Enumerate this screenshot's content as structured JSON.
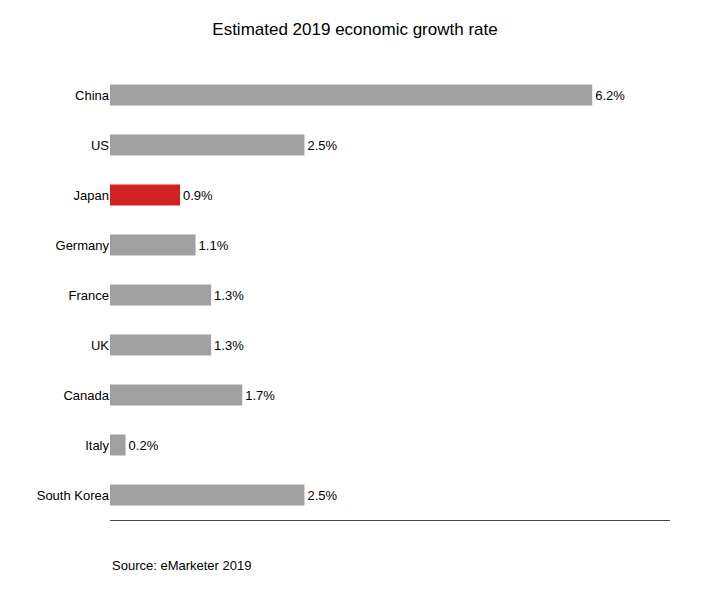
{
  "chart_data": {
    "type": "bar",
    "orientation": "horizontal",
    "title": "Estimated 2019 economic growth rate",
    "categories": [
      "China",
      "US",
      "Japan",
      "Germany",
      "France",
      "UK",
      "Canada",
      "Italy",
      "South Korea"
    ],
    "values": [
      6.2,
      2.5,
      0.9,
      1.1,
      1.3,
      1.3,
      1.7,
      0.2,
      2.5
    ],
    "value_labels": [
      "6.2%",
      "2.5%",
      "0.9%",
      "1.1%",
      "1.3%",
      "1.3%",
      "1.7%",
      "0.2%",
      "2.5%"
    ],
    "data_labels": true,
    "colors": [
      "#a0a0a0",
      "#a0a0a0",
      "#d42020",
      "#a0a0a0",
      "#a0a0a0",
      "#a0a0a0",
      "#a0a0a0",
      "#a0a0a0",
      "#a0a0a0"
    ],
    "xlim": [
      0,
      7.2
    ],
    "tick_labels": "y",
    "grid": false,
    "annotation": "Source: eMarketer 2019"
  }
}
